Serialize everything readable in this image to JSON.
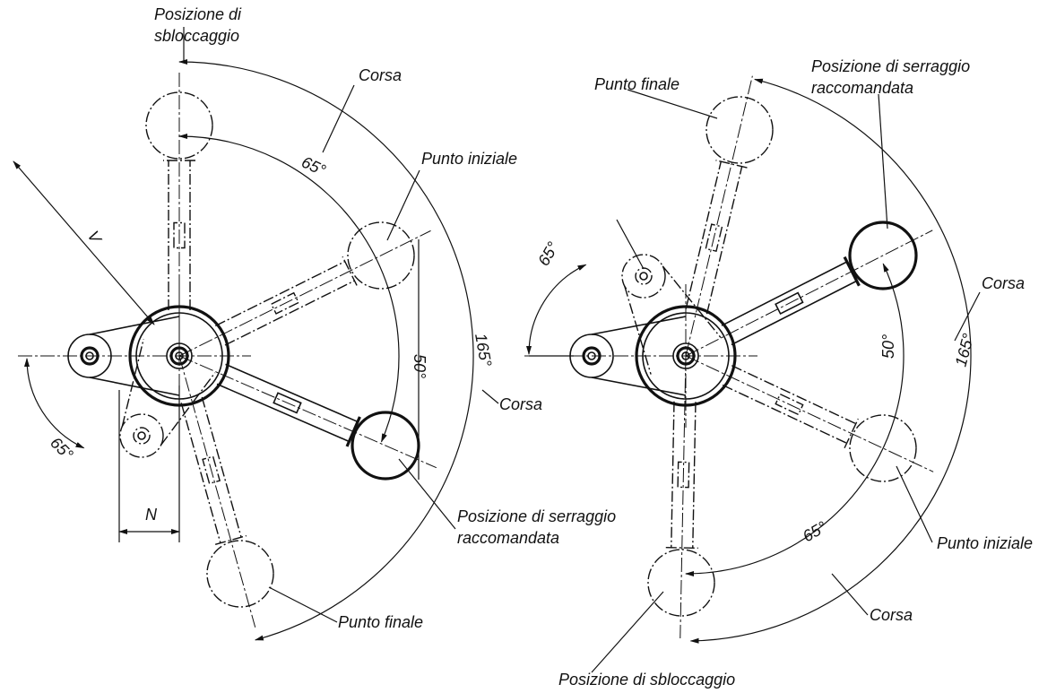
{
  "left": {
    "labels": [
      {
        "lines": [
          "Posizione di",
          "sbloccaggio"
        ]
      },
      {
        "lines": [
          "Corsa"
        ]
      },
      {
        "lines": [
          "65°"
        ]
      },
      {
        "lines": [
          "Punto iniziale"
        ]
      },
      {
        "lines": [
          "V"
        ]
      },
      {
        "lines": [
          "50°"
        ]
      },
      {
        "lines": [
          "165°"
        ]
      },
      {
        "lines": [
          "Corsa"
        ]
      },
      {
        "lines": [
          "65°"
        ]
      },
      {
        "lines": [
          "N"
        ]
      },
      {
        "lines": [
          "Posizione di serraggio",
          "raccomandata"
        ]
      },
      {
        "lines": [
          "Punto finale"
        ]
      }
    ]
  },
  "right": {
    "labels": [
      {
        "lines": [
          "Punto finale"
        ]
      },
      {
        "lines": [
          "Posizione di serraggio",
          "raccomandata"
        ]
      },
      {
        "lines": [
          "65°"
        ]
      },
      {
        "lines": [
          "Corsa"
        ]
      },
      {
        "lines": [
          "50°"
        ]
      },
      {
        "lines": [
          "165°"
        ]
      },
      {
        "lines": [
          "Punto iniziale"
        ]
      },
      {
        "lines": [
          "65°"
        ]
      },
      {
        "lines": [
          "Corsa"
        ]
      },
      {
        "lines": [
          "Posizione di sbloccaggio"
        ]
      }
    ]
  }
}
